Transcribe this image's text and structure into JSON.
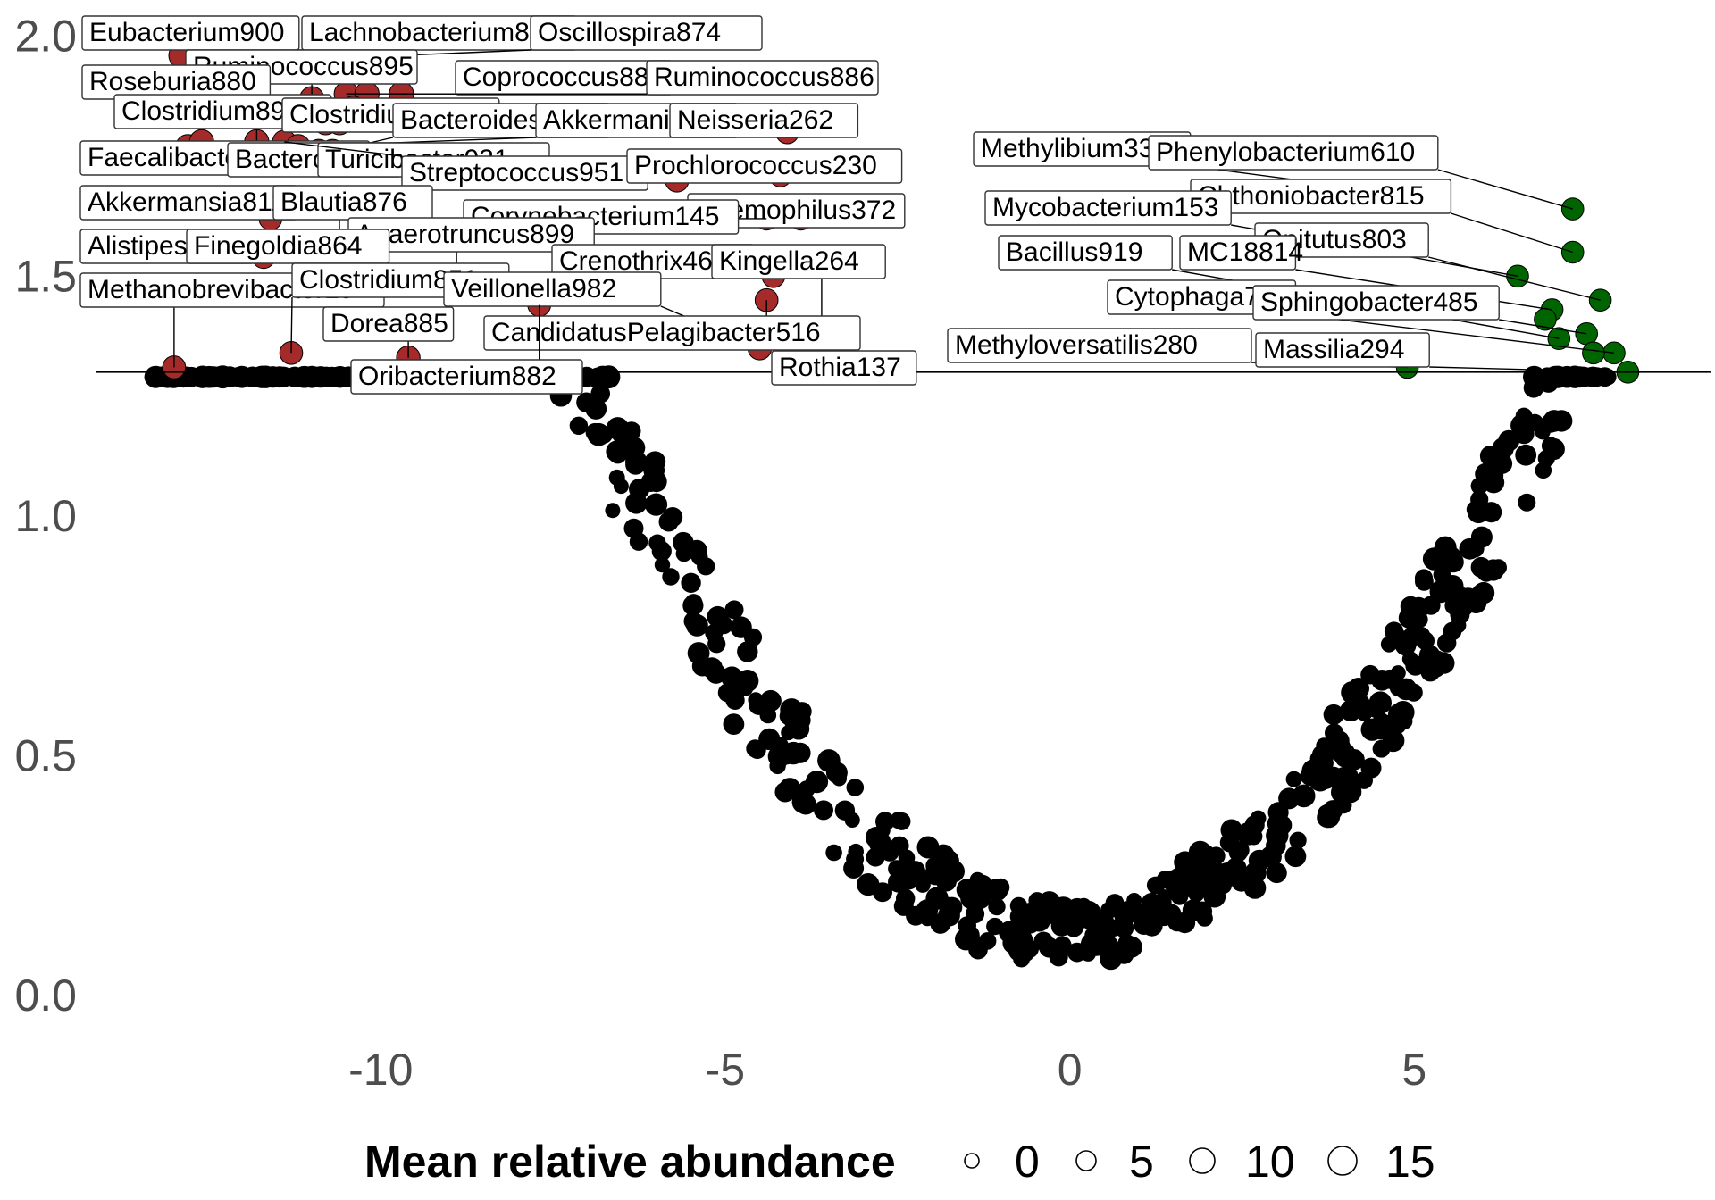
{
  "chart_data": {
    "type": "scatter",
    "title": "",
    "xlabel": "",
    "ylabel": "",
    "xlim": [
      -14.1,
      9.3
    ],
    "ylim": [
      -0.05,
      2.02
    ],
    "x_ticks": [
      -10,
      -5,
      0,
      5
    ],
    "x_tick_labels": [
      "-10",
      "-5",
      "0",
      "5"
    ],
    "y_ticks": [
      0.0,
      0.5,
      1.0,
      1.5,
      2.0
    ],
    "y_tick_labels": [
      "0.0",
      "0.5",
      "1.0",
      "1.5",
      "2.0"
    ],
    "threshold_y": 1.3,
    "grid": false,
    "colors": {
      "depleted": "#a52a2a",
      "enriched": "#006400",
      "neutral": "#000000"
    },
    "legend": {
      "title": "Mean relative abundance",
      "position": "bottom",
      "sizes": [
        0,
        5,
        10,
        15
      ],
      "labels": [
        "0",
        "5",
        "10",
        "15"
      ]
    },
    "labeled_points": [
      {
        "label": "Eubacterium900",
        "x": -12.9,
        "y": 1.96,
        "size": 10,
        "group": "depleted"
      },
      {
        "label": "Lachnobacterium877",
        "x": -11.8,
        "y": 1.97,
        "size": 10,
        "group": "depleted"
      },
      {
        "label": "Oscillospira874",
        "x": -11.4,
        "y": 1.95,
        "size": 9,
        "group": "depleted"
      },
      {
        "label": "Ruminococcus895",
        "x": -11.0,
        "y": 1.87,
        "size": 10,
        "group": "depleted"
      },
      {
        "label": "Roseburia880",
        "x": -11.6,
        "y": 1.85,
        "size": 10,
        "group": "depleted"
      },
      {
        "label": "Coprococcus888",
        "x": -10.5,
        "y": 1.88,
        "size": 10,
        "group": "depleted"
      },
      {
        "label": "Ruminococcus886",
        "x": -9.7,
        "y": 1.88,
        "size": 10,
        "group": "depleted"
      },
      {
        "label": "Clostridium894",
        "x": -11.8,
        "y": 1.78,
        "size": 10,
        "group": "depleted"
      },
      {
        "label": "Clostridium883",
        "x": -10.6,
        "y": 1.82,
        "size": 10,
        "group": "depleted"
      },
      {
        "label": "Bacteroides729",
        "x": -10.7,
        "y": 1.76,
        "size": 10,
        "group": "depleted"
      },
      {
        "label": "Akkermania198",
        "x": -11.3,
        "y": 1.77,
        "size": 10,
        "group": "depleted"
      },
      {
        "label": "Neisseria262",
        "x": -4.1,
        "y": 1.8,
        "size": 8,
        "group": "depleted"
      },
      {
        "label": "Faecalibacterium897",
        "x": -12.8,
        "y": 1.77,
        "size": 10,
        "group": "depleted"
      },
      {
        "label": "Bacteroides",
        "x": -10.9,
        "y": 1.76,
        "size": 10,
        "group": "depleted"
      },
      {
        "label": "Turicibacter931",
        "x": -5.7,
        "y": 1.7,
        "size": 9,
        "group": "depleted"
      },
      {
        "label": "Streptococcus951",
        "x": -11.4,
        "y": 1.78,
        "size": 9,
        "group": "depleted"
      },
      {
        "label": "Prochlorococcus230",
        "x": -4.2,
        "y": 1.71,
        "size": 8,
        "group": "depleted"
      },
      {
        "label": "Akkermansia811",
        "x": -11.6,
        "y": 1.62,
        "size": 8,
        "group": "depleted"
      },
      {
        "label": "Blautia876",
        "x": -10.6,
        "y": 1.56,
        "size": 10,
        "group": "depleted"
      },
      {
        "label": "Haemophilus372",
        "x": -3.9,
        "y": 1.62,
        "size": 8,
        "group": "depleted"
      },
      {
        "label": "Corynebacterium145",
        "x": -4.4,
        "y": 1.62,
        "size": 8,
        "group": "depleted"
      },
      {
        "label": "Anaerotruncus899",
        "x": -8.9,
        "y": 1.48,
        "size": 8,
        "group": "depleted"
      },
      {
        "label": "Alistipes73",
        "x": -11.7,
        "y": 1.54,
        "size": 8,
        "group": "depleted"
      },
      {
        "label": "Finegoldia864",
        "x": -7.7,
        "y": 1.45,
        "size": 9,
        "group": "depleted"
      },
      {
        "label": "Crenothrix465",
        "x": -4.3,
        "y": 1.5,
        "size": 8,
        "group": "depleted"
      },
      {
        "label": "Kingella264",
        "x": -3.6,
        "y": 1.37,
        "size": 8,
        "group": "depleted"
      },
      {
        "label": "Methanobrevibacter19",
        "x": -13.0,
        "y": 1.31,
        "size": 8,
        "group": "depleted"
      },
      {
        "label": "Clostridium851",
        "x": -11.3,
        "y": 1.34,
        "size": 8,
        "group": "depleted"
      },
      {
        "label": "Veillonella982",
        "x": -4.5,
        "y": 1.35,
        "size": 9,
        "group": "depleted"
      },
      {
        "label": "Dorea885",
        "x": -9.6,
        "y": 1.33,
        "size": 9,
        "group": "depleted"
      },
      {
        "label": "CandidatusPelagibacter516",
        "x": -4.4,
        "y": 1.45,
        "size": 8,
        "group": "depleted"
      },
      {
        "label": "Rothia137",
        "x": -3.6,
        "y": 1.31,
        "size": 8,
        "group": "depleted"
      },
      {
        "label": "Oribacterium882",
        "x": -7.7,
        "y": 1.44,
        "size": 8,
        "group": "depleted"
      },
      {
        "label": "Methylibium330",
        "x": 4.9,
        "y": 1.67,
        "size": 7,
        "group": "enriched"
      },
      {
        "label": "Phenylobacterium610",
        "x": 7.3,
        "y": 1.64,
        "size": 7,
        "group": "enriched"
      },
      {
        "label": "Chthoniobacter815",
        "x": 7.3,
        "y": 1.55,
        "size": 7,
        "group": "enriched"
      },
      {
        "label": "Mycobacterium153",
        "x": 6.5,
        "y": 1.5,
        "size": 7,
        "group": "enriched"
      },
      {
        "label": "Opitutus803",
        "x": 7.7,
        "y": 1.45,
        "size": 7,
        "group": "enriched"
      },
      {
        "label": "MC18814",
        "x": 7.0,
        "y": 1.43,
        "size": 7,
        "group": "enriched"
      },
      {
        "label": "Bacillus919",
        "x": 7.1,
        "y": 1.37,
        "size": 7,
        "group": "enriched"
      },
      {
        "label": "Cytophaga754",
        "x": 7.9,
        "y": 1.34,
        "size": 7,
        "group": "enriched"
      },
      {
        "label": "Sphingobacter485",
        "x": 7.5,
        "y": 1.38,
        "size": 7,
        "group": "enriched"
      },
      {
        "label": "Methyloversatilis280",
        "x": 4.9,
        "y": 1.31,
        "size": 7,
        "group": "enriched"
      },
      {
        "label": "Massilia294",
        "x": 8.1,
        "y": 1.3,
        "size": 7,
        "group": "enriched"
      }
    ],
    "colored_points_extra": [
      {
        "x": -12.6,
        "y": 1.78,
        "size": 10,
        "group": "depleted"
      },
      {
        "x": -11.2,
        "y": 1.77,
        "size": 10,
        "group": "depleted"
      },
      {
        "x": -10.8,
        "y": 1.82,
        "size": 10,
        "group": "depleted"
      },
      {
        "x": -10.2,
        "y": 1.88,
        "size": 10,
        "group": "depleted"
      },
      {
        "x": -10.4,
        "y": 1.85,
        "size": 10,
        "group": "depleted"
      },
      {
        "x": 6.9,
        "y": 1.41,
        "size": 7,
        "group": "enriched"
      },
      {
        "x": 7.6,
        "y": 1.34,
        "size": 7,
        "group": "enriched"
      }
    ],
    "background_points": {
      "description_free": true,
      "seed": 7,
      "count": 640,
      "curve": "y approx 0.14 + 0.0236 * x^2 with vertical scatter",
      "x_range": [
        -13.3,
        7.9
      ],
      "y_range": [
        0.04,
        1.29
      ],
      "size_range": [
        2,
        12
      ]
    }
  }
}
